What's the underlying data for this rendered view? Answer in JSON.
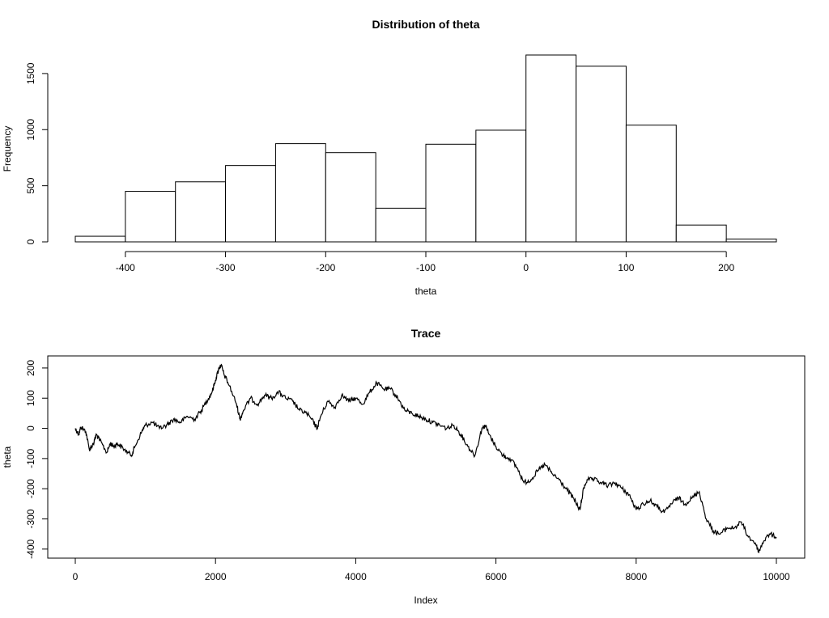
{
  "chart_data": [
    {
      "type": "bar",
      "title": "Distribution of theta",
      "xlabel": "theta",
      "ylabel": "Frequency",
      "bin_edges": [
        -450,
        -400,
        -350,
        -300,
        -250,
        -200,
        -150,
        -100,
        -50,
        0,
        50,
        100,
        150,
        200,
        250
      ],
      "values": [
        50,
        450,
        535,
        680,
        875,
        795,
        300,
        870,
        995,
        1665,
        1565,
        1040,
        150,
        25
      ],
      "xlim": [
        -450,
        250
      ],
      "ylim": [
        0,
        1665
      ],
      "xticks": [
        -400,
        -300,
        -200,
        -100,
        0,
        100,
        200
      ],
      "yticks": [
        0,
        500,
        1000,
        1500
      ],
      "grid": false,
      "box": false
    },
    {
      "type": "line",
      "title": "Trace",
      "xlabel": "Index",
      "ylabel": "theta",
      "x": [
        0,
        50,
        80,
        150,
        200,
        260,
        300,
        350,
        450,
        500,
        550,
        600,
        700,
        800,
        850,
        950,
        1000,
        1100,
        1200,
        1300,
        1400,
        1500,
        1600,
        1700,
        1800,
        1900,
        1950,
        2000,
        2050,
        2080,
        2120,
        2200,
        2300,
        2350,
        2400,
        2500,
        2600,
        2700,
        2800,
        2900,
        3000,
        3100,
        3200,
        3300,
        3400,
        3450,
        3500,
        3600,
        3700,
        3800,
        3900,
        4000,
        4100,
        4200,
        4300,
        4400,
        4500,
        4600,
        4700,
        4800,
        4900,
        5000,
        5100,
        5200,
        5300,
        5400,
        5500,
        5600,
        5700,
        5800,
        5850,
        5900,
        6000,
        6100,
        6200,
        6300,
        6400,
        6500,
        6600,
        6700,
        6800,
        6900,
        7000,
        7100,
        7200,
        7250,
        7300,
        7400,
        7500,
        7600,
        7700,
        7800,
        7900,
        8000,
        8100,
        8200,
        8300,
        8400,
        8500,
        8600,
        8700,
        8800,
        8900,
        9000,
        9100,
        9200,
        9300,
        9400,
        9500,
        9600,
        9700,
        9750,
        9800,
        9900,
        10000
      ],
      "y": [
        0,
        -20,
        5,
        -10,
        -70,
        -50,
        -20,
        -40,
        -80,
        -50,
        -60,
        -50,
        -70,
        -90,
        -60,
        -10,
        10,
        20,
        0,
        10,
        30,
        20,
        40,
        30,
        60,
        100,
        120,
        160,
        200,
        210,
        180,
        140,
        80,
        30,
        60,
        100,
        80,
        110,
        100,
        120,
        100,
        90,
        60,
        50,
        20,
        0,
        40,
        90,
        70,
        110,
        90,
        100,
        80,
        120,
        150,
        130,
        130,
        100,
        60,
        50,
        40,
        30,
        20,
        10,
        0,
        10,
        -20,
        -60,
        -90,
        0,
        10,
        -20,
        -60,
        -90,
        -100,
        -130,
        -180,
        -170,
        -140,
        -120,
        -150,
        -170,
        -200,
        -230,
        -270,
        -200,
        -170,
        -170,
        -180,
        -190,
        -180,
        -200,
        -220,
        -270,
        -250,
        -240,
        -260,
        -280,
        -250,
        -230,
        -250,
        -230,
        -210,
        -300,
        -340,
        -350,
        -330,
        -330,
        -310,
        -360,
        -380,
        -410,
        -380,
        -350,
        -360
      ],
      "xlim": [
        0,
        10000
      ],
      "ylim": [
        -430,
        240
      ],
      "xticks": [
        0,
        2000,
        4000,
        6000,
        8000,
        10000
      ],
      "yticks": [
        -400,
        -300,
        -200,
        -100,
        0,
        100,
        200
      ],
      "grid": false,
      "box": true
    }
  ]
}
